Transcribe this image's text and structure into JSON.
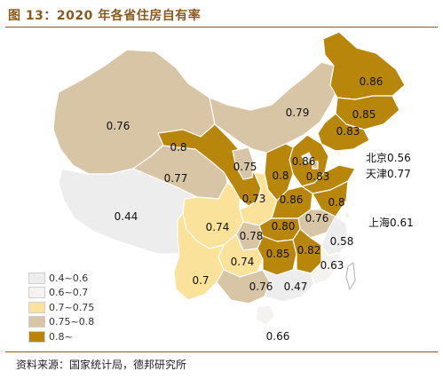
{
  "title": "图 13：2020 年各省住房自有率",
  "source": "资料来源：国家统计局，德邦研究所",
  "colors": {
    "c1": "#ededed",
    "c2": "#f5f3ef",
    "c3": "#fbe29a",
    "c4": "#d8c5a5",
    "c5": "#b8860b",
    "border": "#ffffff",
    "title": "#8a5a1c"
  },
  "legend": [
    {
      "label": "0.4~0.6",
      "color": "#ededed"
    },
    {
      "label": "0.6~0.7",
      "color": "#f5f3ef"
    },
    {
      "label": "0.7~0.75",
      "color": "#fbe29a"
    },
    {
      "label": "0.75~0.8",
      "color": "#d8c5a5"
    },
    {
      "label": "0.8~",
      "color": "#b8860b"
    }
  ],
  "regions": [
    {
      "name": "新疆",
      "value": "0.76",
      "cls": "c4"
    },
    {
      "name": "西藏",
      "value": "0.44",
      "cls": "c1"
    },
    {
      "name": "青海",
      "value": "0.77",
      "cls": "c4"
    },
    {
      "name": "甘肃",
      "value": "0.8",
      "cls": "c5"
    },
    {
      "name": "宁夏",
      "value": "0.75",
      "cls": "c4"
    },
    {
      "name": "内蒙古",
      "value": "0.79",
      "cls": "c4"
    },
    {
      "name": "黑龙江",
      "value": "0.86",
      "cls": "c5"
    },
    {
      "name": "吉林",
      "value": "0.85",
      "cls": "c5"
    },
    {
      "name": "辽宁",
      "value": "0.83",
      "cls": "c5"
    },
    {
      "name": "河北",
      "value": "0.86",
      "cls": "c5"
    },
    {
      "name": "山西",
      "value": "0.8",
      "cls": "c5"
    },
    {
      "name": "山东",
      "value": "0.83",
      "cls": "c5"
    },
    {
      "name": "陕西",
      "value": "0.73",
      "cls": "c3"
    },
    {
      "name": "河南",
      "value": "0.86",
      "cls": "c5"
    },
    {
      "name": "江苏",
      "value": "0.8",
      "cls": "c5"
    },
    {
      "name": "安徽",
      "value": "0.76",
      "cls": "c4"
    },
    {
      "name": "湖北",
      "value": "0.80",
      "cls": "c5"
    },
    {
      "name": "四川",
      "value": "0.74",
      "cls": "c3"
    },
    {
      "name": "重庆",
      "value": "0.78",
      "cls": "c4"
    },
    {
      "name": "贵州",
      "value": "0.74",
      "cls": "c3"
    },
    {
      "name": "云南",
      "value": "0.7",
      "cls": "c3"
    },
    {
      "name": "湖南",
      "value": "0.85",
      "cls": "c5"
    },
    {
      "name": "江西",
      "value": "0.82",
      "cls": "c5"
    },
    {
      "name": "浙江",
      "value": "0.58",
      "cls": "c1"
    },
    {
      "name": "福建",
      "value": "0.63",
      "cls": "c2"
    },
    {
      "name": "广西",
      "value": "0.76",
      "cls": "c4"
    },
    {
      "name": "广东",
      "value": "0.47",
      "cls": "c1"
    },
    {
      "name": "海南",
      "value": "0.66",
      "cls": "c2"
    }
  ],
  "side_labels": [
    {
      "name": "北京",
      "value": "0.56",
      "text": "北京0.56"
    },
    {
      "name": "天津",
      "value": "0.77",
      "text": "天津0.77"
    },
    {
      "name": "上海",
      "value": "0.61",
      "text": "上海0.61"
    }
  ]
}
